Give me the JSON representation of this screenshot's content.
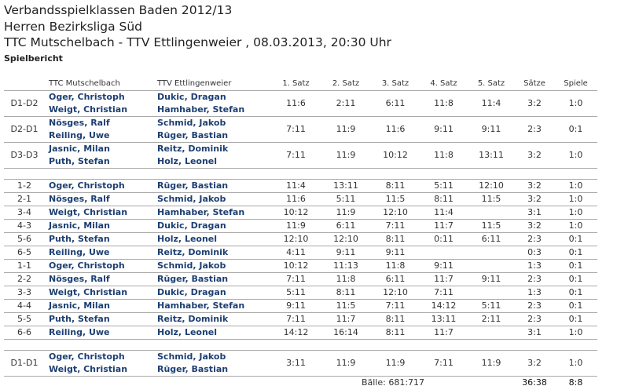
{
  "header": {
    "lines": [
      "Verbandsspielklassen Baden 2012/13",
      "Herren Bezirksliga Süd",
      "TTC Mutschelbach - TTV Ettlingenweier , 08.03.2013, 20:30 Uhr"
    ],
    "subtitle": "Spielbericht"
  },
  "table": {
    "columns": [
      "TTC Mutschelbach",
      "TTV Ettlingenweier",
      "1. Satz",
      "2. Satz",
      "3. Satz",
      "4. Satz",
      "5. Satz",
      "Sätze",
      "Spiele"
    ],
    "groups": [
      [
        {
          "pos": "D1-D2",
          "home": [
            "Oger, Christoph",
            "Weigt, Christian"
          ],
          "away": [
            "Dukic, Dragan",
            "Hamhaber, Stefan"
          ],
          "sets": [
            "11:6",
            "2:11",
            "6:11",
            "11:8",
            "11:4"
          ],
          "saetze": "3:2",
          "spiele": "1:0"
        },
        {
          "pos": "D2-D1",
          "home": [
            "Nösges, Ralf",
            "Reiling, Uwe"
          ],
          "away": [
            "Schmid, Jakob",
            "Rüger, Bastian"
          ],
          "sets": [
            "7:11",
            "11:9",
            "11:6",
            "9:11",
            "9:11"
          ],
          "saetze": "2:3",
          "spiele": "0:1"
        },
        {
          "pos": "D3-D3",
          "home": [
            "Jasnic, Milan",
            "Puth, Stefan"
          ],
          "away": [
            "Reitz, Dominik",
            "Holz, Leonel"
          ],
          "sets": [
            "7:11",
            "11:9",
            "10:12",
            "11:8",
            "13:11"
          ],
          "saetze": "3:2",
          "spiele": "1:0"
        }
      ],
      [
        {
          "pos": "1-2",
          "home": [
            "Oger, Christoph"
          ],
          "away": [
            "Rüger, Bastian"
          ],
          "sets": [
            "11:4",
            "13:11",
            "8:11",
            "5:11",
            "12:10"
          ],
          "saetze": "3:2",
          "spiele": "1:0"
        },
        {
          "pos": "2-1",
          "home": [
            "Nösges, Ralf"
          ],
          "away": [
            "Schmid, Jakob"
          ],
          "sets": [
            "11:6",
            "5:11",
            "11:5",
            "8:11",
            "11:5"
          ],
          "saetze": "3:2",
          "spiele": "1:0"
        },
        {
          "pos": "3-4",
          "home": [
            "Weigt, Christian"
          ],
          "away": [
            "Hamhaber, Stefan"
          ],
          "sets": [
            "10:12",
            "11:9",
            "12:10",
            "11:4"
          ],
          "saetze": "3:1",
          "spiele": "1:0"
        },
        {
          "pos": "4-3",
          "home": [
            "Jasnic, Milan"
          ],
          "away": [
            "Dukic, Dragan"
          ],
          "sets": [
            "11:9",
            "6:11",
            "7:11",
            "11:7",
            "11:5"
          ],
          "saetze": "3:2",
          "spiele": "1:0"
        },
        {
          "pos": "5-6",
          "home": [
            "Puth, Stefan"
          ],
          "away": [
            "Holz, Leonel"
          ],
          "sets": [
            "12:10",
            "12:10",
            "8:11",
            "0:11",
            "6:11"
          ],
          "saetze": "2:3",
          "spiele": "0:1"
        },
        {
          "pos": "6-5",
          "home": [
            "Reiling, Uwe"
          ],
          "away": [
            "Reitz, Dominik"
          ],
          "sets": [
            "4:11",
            "9:11",
            "9:11"
          ],
          "saetze": "0:3",
          "spiele": "0:1"
        },
        {
          "pos": "1-1",
          "home": [
            "Oger, Christoph"
          ],
          "away": [
            "Schmid, Jakob"
          ],
          "sets": [
            "10:12",
            "11:13",
            "11:8",
            "9:11"
          ],
          "saetze": "1:3",
          "spiele": "0:1"
        },
        {
          "pos": "2-2",
          "home": [
            "Nösges, Ralf"
          ],
          "away": [
            "Rüger, Bastian"
          ],
          "sets": [
            "7:11",
            "11:8",
            "6:11",
            "11:7",
            "9:11"
          ],
          "saetze": "2:3",
          "spiele": "0:1"
        },
        {
          "pos": "3-3",
          "home": [
            "Weigt, Christian"
          ],
          "away": [
            "Dukic, Dragan"
          ],
          "sets": [
            "5:11",
            "8:11",
            "12:10",
            "7:11"
          ],
          "saetze": "1:3",
          "spiele": "0:1"
        },
        {
          "pos": "4-4",
          "home": [
            "Jasnic, Milan"
          ],
          "away": [
            "Hamhaber, Stefan"
          ],
          "sets": [
            "9:11",
            "11:5",
            "7:11",
            "14:12",
            "5:11"
          ],
          "saetze": "2:3",
          "spiele": "0:1"
        },
        {
          "pos": "5-5",
          "home": [
            "Puth, Stefan"
          ],
          "away": [
            "Reitz, Dominik"
          ],
          "sets": [
            "7:11",
            "11:7",
            "8:11",
            "13:11",
            "2:11"
          ],
          "saetze": "2:3",
          "spiele": "0:1"
        },
        {
          "pos": "6-6",
          "home": [
            "Reiling, Uwe"
          ],
          "away": [
            "Holz, Leonel"
          ],
          "sets": [
            "14:12",
            "16:14",
            "8:11",
            "11:7"
          ],
          "saetze": "3:1",
          "spiele": "1:0"
        }
      ],
      [
        {
          "pos": "D1-D1",
          "home": [
            "Oger, Christoph",
            "Weigt, Christian"
          ],
          "away": [
            "Schmid, Jakob",
            "Rüger, Bastian"
          ],
          "sets": [
            "3:11",
            "11:9",
            "11:9",
            "7:11",
            "11:9"
          ],
          "saetze": "3:2",
          "spiele": "1:0"
        }
      ]
    ],
    "footer": {
      "balls": "Bälle: 681:717",
      "saetze": "36:38",
      "spiele": "8:8"
    }
  }
}
